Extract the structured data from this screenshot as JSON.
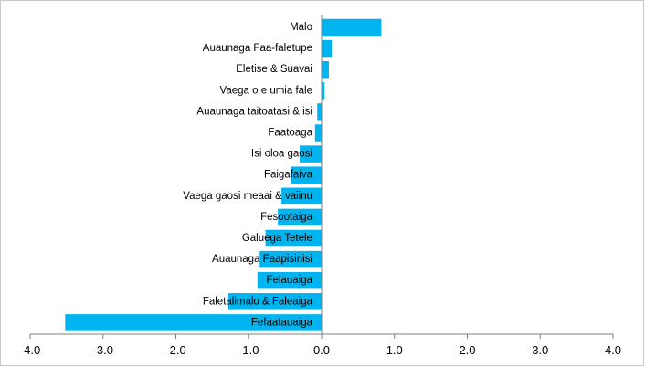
{
  "chart_data": {
    "type": "bar",
    "orientation": "horizontal",
    "categories": [
      "Malo",
      "Auaunaga Faa-faletupe",
      "Eletise & Suavai",
      "Vaega o e umia fale",
      "Auaunaga taitoatasi & isi",
      "Faatoaga",
      "Isi oloa gaosi",
      "Faigafaiva",
      "Vaega gaosi meaai & vaiinu",
      "Fesootaiga",
      "Galuega Tetele",
      "Auaunaga Faapisinisi",
      "Felauaiga",
      "Faletalimalo & Faleaiga",
      "Fefaatauaiga"
    ],
    "values": [
      0.82,
      0.14,
      0.1,
      0.04,
      -0.06,
      -0.09,
      -0.3,
      -0.42,
      -0.55,
      -0.6,
      -0.77,
      -0.85,
      -0.88,
      -1.28,
      -3.52
    ],
    "xlim": [
      -4.0,
      4.0
    ],
    "xticks": [
      "-4.0",
      "-3.0",
      "-2.0",
      "-1.0",
      "0.0",
      "1.0",
      "2.0",
      "3.0",
      "4.0"
    ],
    "title": "",
    "xlabel": "",
    "ylabel": "",
    "grid": false,
    "legend": "none",
    "bar_color": "#00b4f0"
  }
}
